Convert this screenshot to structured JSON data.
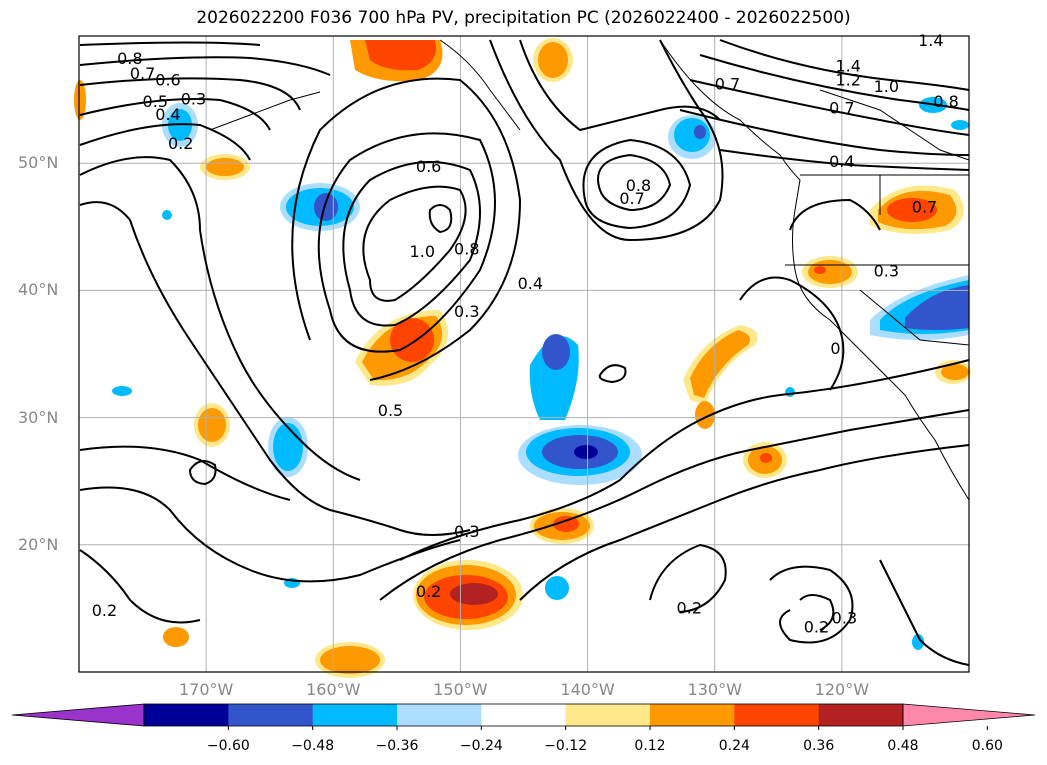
{
  "title": "2026022200 F036 700 hPa PV, precipitation PC (2026022400 - 2026022500)",
  "lat_ticks": [
    {
      "label": "50°N",
      "lat": 50
    },
    {
      "label": "40°N",
      "lat": 40
    },
    {
      "label": "30°N",
      "lat": 30
    },
    {
      "label": "20°N",
      "lat": 20
    }
  ],
  "lon_ticks": [
    {
      "label": "170°W",
      "lon": -170
    },
    {
      "label": "160°W",
      "lon": -160
    },
    {
      "label": "150°W",
      "lon": -150
    },
    {
      "label": "140°W",
      "lon": -140
    },
    {
      "label": "130°W",
      "lon": -130
    },
    {
      "label": "120°W",
      "lon": -120
    }
  ],
  "extent": {
    "lon_min": -180,
    "lon_max": -110,
    "lat_min": 10,
    "lat_max": 60
  },
  "colorbar": {
    "labels": [
      "−0.60",
      "−0.48",
      "−0.36",
      "−0.24",
      "−0.12",
      "0.12",
      "0.24",
      "0.36",
      "0.48",
      "0.60"
    ],
    "colors": [
      "#9933cc",
      "#000099",
      "#3355cc",
      "#00bbff",
      "#aaddff",
      "#ffffff",
      "#ffe88a",
      "#ff9900",
      "#ff4400",
      "#b22222",
      "#ff88aa"
    ]
  },
  "contour_labels": [
    {
      "text": "0.8",
      "lon": -176,
      "lat": 58.2
    },
    {
      "text": "0.7",
      "lon": -175,
      "lat": 57
    },
    {
      "text": "0.6",
      "lon": -173,
      "lat": 56.5
    },
    {
      "text": "0.5",
      "lon": -174,
      "lat": 54.8
    },
    {
      "text": "0.4",
      "lon": -173,
      "lat": 53.8
    },
    {
      "text": "0.3",
      "lon": -171,
      "lat": 55
    },
    {
      "text": "0.2",
      "lon": -172,
      "lat": 51.5
    },
    {
      "text": "0.6",
      "lon": -152.5,
      "lat": 49.7
    },
    {
      "text": "1.0",
      "lon": -153,
      "lat": 43
    },
    {
      "text": "0.8",
      "lon": -149.5,
      "lat": 43.2
    },
    {
      "text": "0.3",
      "lon": -149.5,
      "lat": 38.3
    },
    {
      "text": "0.4",
      "lon": -144.5,
      "lat": 40.5
    },
    {
      "text": "0.8",
      "lon": -136,
      "lat": 48.2
    },
    {
      "text": "0.7",
      "lon": -136.5,
      "lat": 47.2
    },
    {
      "text": "0.5",
      "lon": -155.5,
      "lat": 30.5
    },
    {
      "text": "0.3",
      "lon": -149.5,
      "lat": 21
    },
    {
      "text": "0.2",
      "lon": -152.5,
      "lat": 16.3
    },
    {
      "text": "0.2",
      "lon": -178,
      "lat": 14.8
    },
    {
      "text": "0.2",
      "lon": -132,
      "lat": 15
    },
    {
      "text": "0.2",
      "lon": -122,
      "lat": 13.5
    },
    {
      "text": "0.3",
      "lon": -119.8,
      "lat": 14.2
    },
    {
      "text": "1.4",
      "lon": -113,
      "lat": 59.6
    },
    {
      "text": "1.4",
      "lon": -119.5,
      "lat": 57.6
    },
    {
      "text": "1.2",
      "lon": -119.5,
      "lat": 56.5
    },
    {
      "text": "1.0",
      "lon": -116.5,
      "lat": 56
    },
    {
      "text": "0.8",
      "lon": -111.8,
      "lat": 54.8
    },
    {
      "text": "0.7",
      "lon": -120,
      "lat": 54.3
    },
    {
      "text": "0.4",
      "lon": -120,
      "lat": 50.1
    },
    {
      "text": "0.3",
      "lon": -116.5,
      "lat": 41.5
    },
    {
      "text": "0",
      "lon": -120.5,
      "lat": 35.4
    },
    {
      "text": "0.7",
      "lon": -113.5,
      "lat": 46.5
    },
    {
      "text": "0.7",
      "lon": -129,
      "lat": 56.2
    }
  ]
}
